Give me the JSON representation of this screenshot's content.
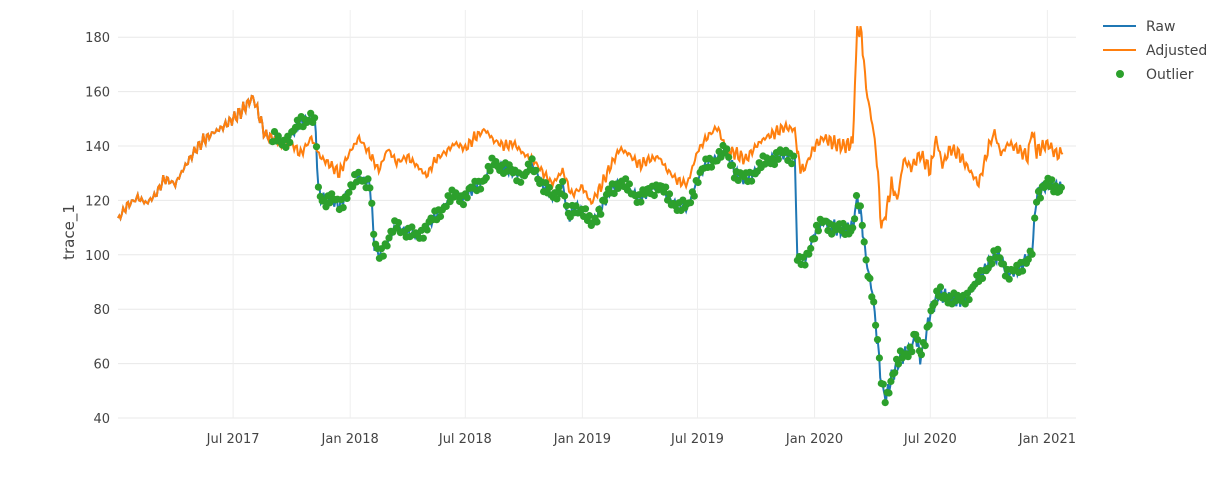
{
  "chart_data": {
    "type": "line",
    "title": "",
    "xlabel": "",
    "ylabel": "trace_1",
    "ylim": [
      40,
      190
    ],
    "xlim": [
      "2017-01-01",
      "2021-02-15"
    ],
    "grid": true,
    "legend_position": "top-right",
    "x_ticks": [
      {
        "date": "2017-07-01",
        "label": "Jul 2017"
      },
      {
        "date": "2018-01-01",
        "label": "Jan 2018"
      },
      {
        "date": "2018-07-01",
        "label": "Jul 2018"
      },
      {
        "date": "2019-01-01",
        "label": "Jan 2019"
      },
      {
        "date": "2019-07-01",
        "label": "Jul 2019"
      },
      {
        "date": "2020-01-01",
        "label": "Jan 2020"
      },
      {
        "date": "2020-07-01",
        "label": "Jul 2020"
      },
      {
        "date": "2021-01-01",
        "label": "Jan 2021"
      }
    ],
    "y_ticks": [
      {
        "value": 40,
        "label": "40"
      },
      {
        "value": 60,
        "label": "60"
      },
      {
        "value": 80,
        "label": "80"
      },
      {
        "value": 100,
        "label": "100"
      },
      {
        "value": 120,
        "label": "120"
      },
      {
        "value": 140,
        "label": "140"
      },
      {
        "value": 160,
        "label": "160"
      },
      {
        "value": 180,
        "label": "180"
      }
    ],
    "series": [
      {
        "name": "Raw",
        "color": "#1f77b4",
        "style": "line",
        "points": [
          [
            "2017-01-01",
            113
          ],
          [
            "2017-01-15",
            118
          ],
          [
            "2017-02-01",
            121
          ],
          [
            "2017-02-15",
            119
          ],
          [
            "2017-03-01",
            122
          ],
          [
            "2017-03-15",
            128
          ],
          [
            "2017-04-01",
            126
          ],
          [
            "2017-04-15",
            132
          ],
          [
            "2017-05-01",
            138
          ],
          [
            "2017-05-15",
            142
          ],
          [
            "2017-06-01",
            145
          ],
          [
            "2017-06-15",
            147
          ],
          [
            "2017-07-01",
            150
          ],
          [
            "2017-07-15",
            153
          ],
          [
            "2017-08-01",
            158
          ],
          [
            "2017-08-10",
            152
          ],
          [
            "2017-08-20",
            144
          ],
          [
            "2017-09-01",
            143
          ],
          [
            "2017-09-15",
            141
          ],
          [
            "2017-10-01",
            144
          ],
          [
            "2017-10-15",
            149
          ],
          [
            "2017-11-01",
            151
          ],
          [
            "2017-11-08",
            146
          ],
          [
            "2017-11-12",
            123
          ],
          [
            "2017-11-20",
            120
          ],
          [
            "2017-12-01",
            121
          ],
          [
            "2017-12-15",
            118
          ],
          [
            "2018-01-01",
            124
          ],
          [
            "2018-01-15",
            129
          ],
          [
            "2018-02-01",
            126
          ],
          [
            "2018-02-08",
            104
          ],
          [
            "2018-02-15",
            100
          ],
          [
            "2018-03-01",
            105
          ],
          [
            "2018-03-15",
            111
          ],
          [
            "2018-04-01",
            108
          ],
          [
            "2018-04-15",
            107
          ],
          [
            "2018-05-01",
            110
          ],
          [
            "2018-05-15",
            114
          ],
          [
            "2018-06-01",
            119
          ],
          [
            "2018-06-15",
            122
          ],
          [
            "2018-07-01",
            121
          ],
          [
            "2018-07-15",
            125
          ],
          [
            "2018-08-01",
            128
          ],
          [
            "2018-08-15",
            134
          ],
          [
            "2018-09-01",
            132
          ],
          [
            "2018-09-15",
            130
          ],
          [
            "2018-10-01",
            129
          ],
          [
            "2018-10-15",
            133
          ],
          [
            "2018-11-01",
            125
          ],
          [
            "2018-11-15",
            121
          ],
          [
            "2018-12-01",
            126
          ],
          [
            "2018-12-10",
            113
          ],
          [
            "2018-12-20",
            118
          ],
          [
            "2019-01-01",
            116
          ],
          [
            "2019-01-15",
            111
          ],
          [
            "2019-02-01",
            118
          ],
          [
            "2019-02-15",
            124
          ],
          [
            "2019-03-01",
            127
          ],
          [
            "2019-03-15",
            124
          ],
          [
            "2019-04-01",
            121
          ],
          [
            "2019-04-15",
            123
          ],
          [
            "2019-05-01",
            126
          ],
          [
            "2019-05-15",
            121
          ],
          [
            "2019-06-01",
            118
          ],
          [
            "2019-06-15",
            117
          ],
          [
            "2019-07-01",
            128
          ],
          [
            "2019-07-15",
            133
          ],
          [
            "2019-08-01",
            136
          ],
          [
            "2019-08-15",
            138
          ],
          [
            "2019-09-01",
            129
          ],
          [
            "2019-09-15",
            128
          ],
          [
            "2019-10-01",
            131
          ],
          [
            "2019-10-15",
            134
          ],
          [
            "2019-11-01",
            136
          ],
          [
            "2019-11-15",
            137
          ],
          [
            "2019-12-01",
            136
          ],
          [
            "2019-12-05",
            98
          ],
          [
            "2019-12-15",
            96
          ],
          [
            "2020-01-01",
            108
          ],
          [
            "2020-01-15",
            112
          ],
          [
            "2020-02-01",
            110
          ],
          [
            "2020-02-15",
            109
          ],
          [
            "2020-03-01",
            110
          ],
          [
            "2020-03-08",
            121
          ],
          [
            "2020-03-15",
            113
          ],
          [
            "2020-03-22",
            98
          ],
          [
            "2020-04-01",
            86
          ],
          [
            "2020-04-08",
            70
          ],
          [
            "2020-04-15",
            53
          ],
          [
            "2020-04-22",
            47
          ],
          [
            "2020-05-01",
            55
          ],
          [
            "2020-05-15",
            62
          ],
          [
            "2020-06-01",
            66
          ],
          [
            "2020-06-08",
            71
          ],
          [
            "2020-06-15",
            62
          ],
          [
            "2020-06-22",
            68
          ],
          [
            "2020-07-01",
            79
          ],
          [
            "2020-07-15",
            86
          ],
          [
            "2020-08-01",
            84
          ],
          [
            "2020-08-15",
            83
          ],
          [
            "2020-09-01",
            86
          ],
          [
            "2020-09-15",
            91
          ],
          [
            "2020-10-01",
            97
          ],
          [
            "2020-10-15",
            100
          ],
          [
            "2020-11-01",
            93
          ],
          [
            "2020-11-15",
            94
          ],
          [
            "2020-12-01",
            99
          ],
          [
            "2020-12-08",
            101
          ],
          [
            "2020-12-15",
            122
          ],
          [
            "2021-01-01",
            126
          ],
          [
            "2021-01-15",
            125
          ],
          [
            "2021-01-25",
            124
          ]
        ]
      },
      {
        "name": "Adjusted",
        "color": "#ff7f0e",
        "style": "line",
        "points": [
          [
            "2017-01-01",
            113
          ],
          [
            "2017-01-15",
            118
          ],
          [
            "2017-02-01",
            121
          ],
          [
            "2017-02-15",
            119
          ],
          [
            "2017-03-01",
            122
          ],
          [
            "2017-03-15",
            128
          ],
          [
            "2017-04-01",
            126
          ],
          [
            "2017-04-15",
            132
          ],
          [
            "2017-05-01",
            138
          ],
          [
            "2017-05-15",
            142
          ],
          [
            "2017-06-01",
            145
          ],
          [
            "2017-06-15",
            147
          ],
          [
            "2017-07-01",
            150
          ],
          [
            "2017-07-15",
            153
          ],
          [
            "2017-08-01",
            158
          ],
          [
            "2017-08-10",
            152
          ],
          [
            "2017-08-20",
            144
          ],
          [
            "2017-09-01",
            143
          ],
          [
            "2017-09-15",
            140
          ],
          [
            "2017-10-01",
            141
          ],
          [
            "2017-10-15",
            137
          ],
          [
            "2017-11-01",
            143
          ],
          [
            "2017-11-15",
            136
          ],
          [
            "2017-12-01",
            133
          ],
          [
            "2017-12-15",
            130
          ],
          [
            "2018-01-01",
            138
          ],
          [
            "2018-01-15",
            143
          ],
          [
            "2018-02-01",
            137
          ],
          [
            "2018-02-15",
            131
          ],
          [
            "2018-03-01",
            139
          ],
          [
            "2018-03-15",
            134
          ],
          [
            "2018-04-01",
            136
          ],
          [
            "2018-04-15",
            133
          ],
          [
            "2018-05-01",
            129
          ],
          [
            "2018-05-15",
            135
          ],
          [
            "2018-06-01",
            138
          ],
          [
            "2018-06-15",
            141
          ],
          [
            "2018-07-01",
            139
          ],
          [
            "2018-07-15",
            143
          ],
          [
            "2018-08-01",
            146
          ],
          [
            "2018-08-15",
            142
          ],
          [
            "2018-09-01",
            140
          ],
          [
            "2018-09-15",
            141
          ],
          [
            "2018-10-01",
            137
          ],
          [
            "2018-10-15",
            135
          ],
          [
            "2018-11-01",
            130
          ],
          [
            "2018-11-15",
            126
          ],
          [
            "2018-12-01",
            131
          ],
          [
            "2018-12-15",
            122
          ],
          [
            "2019-01-01",
            125
          ],
          [
            "2019-01-15",
            119
          ],
          [
            "2019-02-01",
            126
          ],
          [
            "2019-02-15",
            133
          ],
          [
            "2019-03-01",
            139
          ],
          [
            "2019-03-15",
            137
          ],
          [
            "2019-04-01",
            133
          ],
          [
            "2019-04-15",
            135
          ],
          [
            "2019-05-01",
            136
          ],
          [
            "2019-05-15",
            131
          ],
          [
            "2019-06-01",
            127
          ],
          [
            "2019-06-15",
            126
          ],
          [
            "2019-07-01",
            138
          ],
          [
            "2019-07-15",
            143
          ],
          [
            "2019-08-01",
            147
          ],
          [
            "2019-08-15",
            139
          ],
          [
            "2019-09-01",
            137
          ],
          [
            "2019-09-15",
            135
          ],
          [
            "2019-10-01",
            140
          ],
          [
            "2019-10-15",
            143
          ],
          [
            "2019-11-01",
            145
          ],
          [
            "2019-11-15",
            147
          ],
          [
            "2019-12-01",
            146
          ],
          [
            "2019-12-08",
            133
          ],
          [
            "2019-12-15",
            131
          ],
          [
            "2020-01-01",
            140
          ],
          [
            "2020-01-15",
            143
          ],
          [
            "2020-02-01",
            141
          ],
          [
            "2020-02-15",
            140
          ],
          [
            "2020-03-01",
            141
          ],
          [
            "2020-03-08",
            183
          ],
          [
            "2020-03-15",
            181
          ],
          [
            "2020-03-22",
            161
          ],
          [
            "2020-04-01",
            148
          ],
          [
            "2020-04-08",
            135
          ],
          [
            "2020-04-15",
            110
          ],
          [
            "2020-04-22",
            115
          ],
          [
            "2020-05-01",
            126
          ],
          [
            "2020-05-10",
            120
          ],
          [
            "2020-05-20",
            135
          ],
          [
            "2020-06-01",
            132
          ],
          [
            "2020-06-15",
            137
          ],
          [
            "2020-07-01",
            131
          ],
          [
            "2020-07-10",
            143
          ],
          [
            "2020-07-20",
            133
          ],
          [
            "2020-08-01",
            139
          ],
          [
            "2020-08-15",
            137
          ],
          [
            "2020-09-01",
            131
          ],
          [
            "2020-09-15",
            126
          ],
          [
            "2020-10-01",
            140
          ],
          [
            "2020-10-10",
            145
          ],
          [
            "2020-10-20",
            137
          ],
          [
            "2020-11-01",
            141
          ],
          [
            "2020-11-15",
            139
          ],
          [
            "2020-12-01",
            136
          ],
          [
            "2020-12-08",
            146
          ],
          [
            "2020-12-15",
            138
          ],
          [
            "2021-01-01",
            141
          ],
          [
            "2021-01-15",
            137
          ],
          [
            "2021-01-25",
            137
          ]
        ]
      },
      {
        "name": "Outlier",
        "color": "#2ca02c",
        "style": "markers",
        "segments": [
          [
            "2017-09-01",
            "2017-11-10"
          ],
          [
            "2017-11-12",
            "2018-12-08"
          ],
          [
            "2018-12-10",
            "2019-11-30"
          ],
          [
            "2019-12-05",
            "2020-12-10"
          ],
          [
            "2020-12-12",
            "2021-01-25"
          ]
        ]
      }
    ]
  }
}
